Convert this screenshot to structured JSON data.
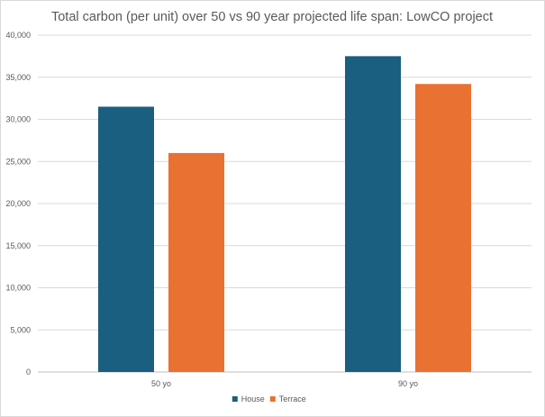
{
  "chart_data": {
    "type": "bar",
    "title": "Total carbon (per unit) over 50 vs 90 year projected life span: LowCO project",
    "xlabel": "",
    "ylabel": "",
    "categories": [
      "50 yo",
      "90 yo"
    ],
    "series": [
      {
        "name": "House",
        "values": [
          31500,
          37500
        ],
        "color": "#1a5e80"
      },
      {
        "name": "Terrace",
        "values": [
          26000,
          34200
        ],
        "color": "#e97132"
      }
    ],
    "ylim": [
      0,
      40000
    ],
    "yticks": [
      0,
      5000,
      10000,
      15000,
      20000,
      25000,
      30000,
      35000,
      40000
    ],
    "ytick_labels": [
      "0",
      "5,000",
      "10,000",
      "15,000",
      "20,000",
      "25,000",
      "30,000",
      "35,000",
      "40,000"
    ],
    "grid": true,
    "legend_position": "bottom"
  }
}
